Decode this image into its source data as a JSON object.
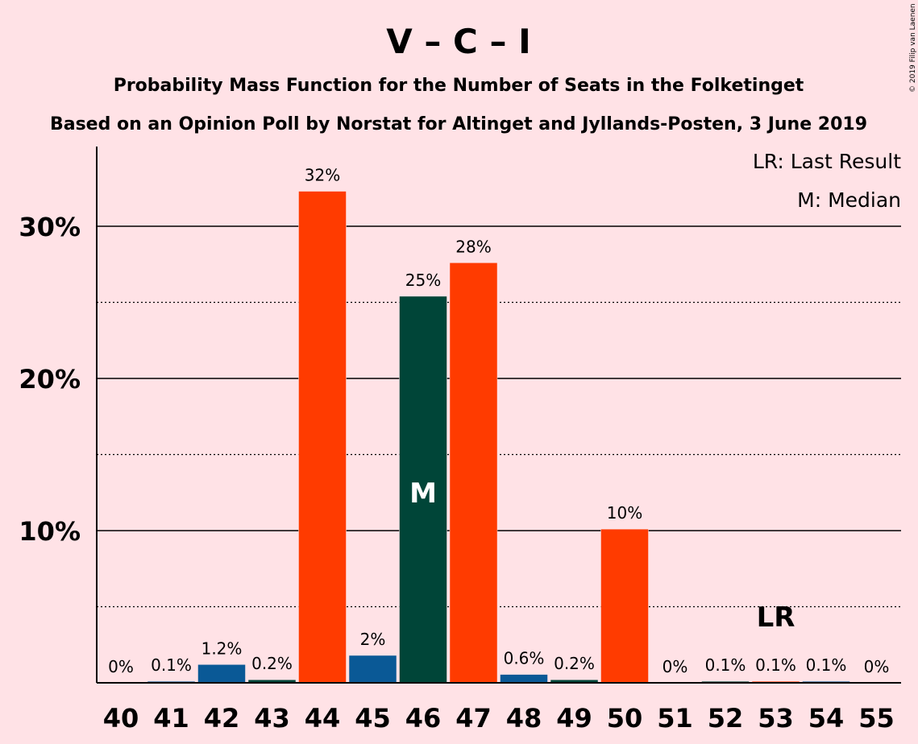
{
  "chart_data": {
    "type": "bar",
    "title": "V – C – I",
    "subtitle1": "Probability Mass Function for the Number of Seats in the Folketinget",
    "subtitle2": "Based on an Opinion Poll by Norstat for Altinget and Jyllands-Posten, 3 June 2019",
    "credit": "© 2019 Filip van Laenen",
    "legend": {
      "lr": "LR: Last Result",
      "m": "M: Median",
      "placement": "top-right"
    },
    "categories": [
      "40",
      "41",
      "42",
      "43",
      "44",
      "45",
      "46",
      "47",
      "48",
      "49",
      "50",
      "51",
      "52",
      "53",
      "54",
      "55"
    ],
    "values": [
      0,
      0.1,
      1.2,
      0.2,
      32.3,
      1.8,
      25.4,
      27.6,
      0.55,
      0.2,
      10.1,
      0,
      0.1,
      0.1,
      0.1,
      0
    ],
    "labels": [
      "0%",
      "0.1%",
      "1.2%",
      "0.2%",
      "32%",
      "2%",
      "25%",
      "28%",
      "0.6%",
      "0.2%",
      "10%",
      "0%",
      "0.1%",
      "0.1%",
      "0.1%",
      "0%"
    ],
    "bar_colors": [
      "#0A5996",
      "#0A5996",
      "#0A5996",
      "#004538",
      "#FF3B00",
      "#0A5996",
      "#004538",
      "#FF3B00",
      "#0A5996",
      "#004538",
      "#FF3B00",
      "#0A5996",
      "#004538",
      "#FF3B00",
      "#0A5996",
      "#004538"
    ],
    "yticks": [
      {
        "value": 10,
        "label": "10%"
      },
      {
        "value": 20,
        "label": "20%"
      },
      {
        "value": 30,
        "label": "30%"
      }
    ],
    "gridlines_dotted": [
      5,
      15,
      25
    ],
    "ylim": [
      0,
      35
    ],
    "median_category": "46",
    "median_label": "M",
    "last_result_category": "53",
    "last_result_label": "LR",
    "grid": true
  }
}
